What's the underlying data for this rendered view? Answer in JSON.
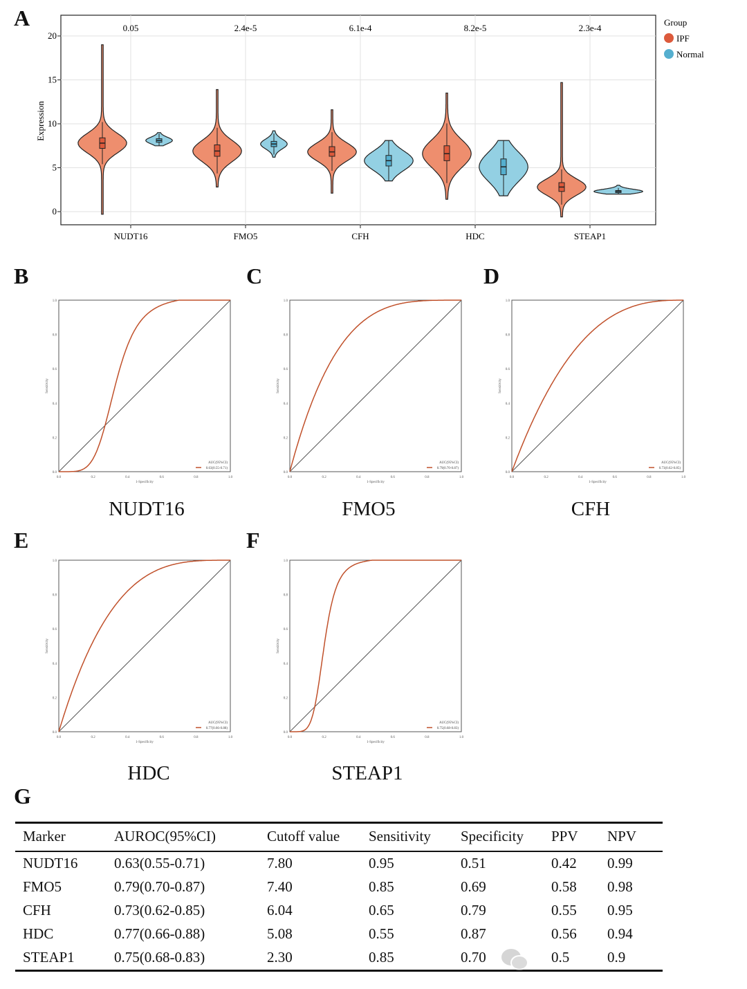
{
  "panels": {
    "A": "A",
    "B": "B",
    "C": "C",
    "D": "D",
    "E": "E",
    "F": "F",
    "G": "G"
  },
  "colors": {
    "IPF": "#EE8E6E",
    "IPF_box": "#DC5A3C",
    "Normal": "#93D0E3",
    "Normal_box": "#55AFCF",
    "roc_curve": "#C0502A"
  },
  "chart_data": [
    {
      "type": "violin",
      "ylabel": "Expression",
      "ylim": [
        -1.5,
        22
      ],
      "yticks": [
        0,
        5,
        10,
        15,
        20
      ],
      "grid": true,
      "legend": {
        "title": "Group",
        "placement": "top-right",
        "entries": [
          "IPF",
          "Normal"
        ]
      },
      "categories": [
        "NUDT16",
        "FMO5",
        "CFH",
        "HDC",
        "STEAP1"
      ],
      "pvalues": [
        "0.05",
        "2.4e-5",
        "6.1e-4",
        "8.2e-5",
        "2.3e-4"
      ],
      "series": [
        {
          "name": "IPF",
          "stats": [
            {
              "min": -0.3,
              "max": 19.0,
              "q1": 7.2,
              "median": 7.8,
              "q3": 8.4
            },
            {
              "min": 2.8,
              "max": 13.9,
              "q1": 6.3,
              "median": 6.9,
              "q3": 7.6
            },
            {
              "min": 2.1,
              "max": 11.6,
              "q1": 6.3,
              "median": 6.8,
              "q3": 7.4
            },
            {
              "min": 1.4,
              "max": 13.5,
              "q1": 5.8,
              "median": 6.6,
              "q3": 7.5
            },
            {
              "min": -0.6,
              "max": 14.7,
              "q1": 2.3,
              "median": 2.8,
              "q3": 3.3
            }
          ]
        },
        {
          "name": "Normal",
          "stats": [
            {
              "min": 7.5,
              "max": 9.0,
              "q1": 7.9,
              "median": 8.1,
              "q3": 8.3
            },
            {
              "min": 6.2,
              "max": 9.2,
              "q1": 7.4,
              "median": 7.7,
              "q3": 8.0
            },
            {
              "min": 3.5,
              "max": 8.1,
              "q1": 5.2,
              "median": 5.8,
              "q3": 6.4
            },
            {
              "min": 1.8,
              "max": 8.1,
              "q1": 4.2,
              "median": 5.1,
              "q3": 6.0
            },
            {
              "min": 2.0,
              "max": 3.0,
              "q1": 2.2,
              "median": 2.3,
              "q3": 2.4
            }
          ]
        }
      ]
    },
    {
      "type": "line",
      "title": "NUDT16",
      "panel": "B",
      "xlabel": "1-Specificity",
      "ylabel": "Sensitivity",
      "xlim": [
        0,
        1
      ],
      "ylim": [
        0,
        1
      ],
      "ticks": [
        "0.0",
        "0.2",
        "0.4",
        "0.6",
        "0.8",
        "1.0"
      ],
      "legend_title": "AUC(95%CI)",
      "auc": "0.63(0.55-0.71)",
      "shape": "sigmoid"
    },
    {
      "type": "line",
      "title": "FMO5",
      "panel": "C",
      "xlabel": "1-Specificity",
      "ylabel": "Sensitivity",
      "xlim": [
        0,
        1
      ],
      "ylim": [
        0,
        1
      ],
      "ticks": [
        "0.0",
        "0.2",
        "0.4",
        "0.6",
        "0.8",
        "1.0"
      ],
      "legend_title": "AUC(95%CI)",
      "auc": "0.79(0.70-0.87)",
      "shape": "concave"
    },
    {
      "type": "line",
      "title": "CFH",
      "panel": "D",
      "xlabel": "1-Specificity",
      "ylabel": "Sensitivity",
      "xlim": [
        0,
        1
      ],
      "ylim": [
        0,
        1
      ],
      "ticks": [
        "0.0",
        "0.2",
        "0.4",
        "0.6",
        "0.8",
        "1.0"
      ],
      "legend_title": "AUC(95%CI)",
      "auc": "0.73(0.62-0.85)",
      "shape": "concave"
    },
    {
      "type": "line",
      "title": "HDC",
      "panel": "E",
      "xlabel": "1-Specificity",
      "ylabel": "Sensitivity",
      "xlim": [
        0,
        1
      ],
      "ylim": [
        0,
        1
      ],
      "ticks": [
        "0.0",
        "0.2",
        "0.4",
        "0.6",
        "0.8",
        "1.0"
      ],
      "legend_title": "AUC(95%CI)",
      "auc": "0.77(0.66-0.88)",
      "shape": "concave"
    },
    {
      "type": "line",
      "title": "STEAP1",
      "panel": "F",
      "xlabel": "1-Specificity",
      "ylabel": "Sensitivity",
      "xlim": [
        0,
        1
      ],
      "ylim": [
        0,
        1
      ],
      "ticks": [
        "0.0",
        "0.2",
        "0.4",
        "0.6",
        "0.8",
        "1.0"
      ],
      "legend_title": "AUC(95%CI)",
      "auc": "0.75(0.68-0.83)",
      "shape": "sigmoid"
    }
  ],
  "table": {
    "headers": [
      "Marker",
      "AUROC(95%CI)",
      "Cutoff value",
      "Sensitivity",
      "Specificity",
      "PPV",
      "NPV"
    ],
    "rows": [
      [
        "NUDT16",
        "0.63(0.55-0.71)",
        "7.80",
        "0.95",
        "0.51",
        "0.42",
        "0.99"
      ],
      [
        "FMO5",
        "0.79(0.70-0.87)",
        "7.40",
        "0.85",
        "0.69",
        "0.58",
        "0.98"
      ],
      [
        "CFH",
        "0.73(0.62-0.85)",
        "6.04",
        "0.65",
        "0.79",
        "0.55",
        "0.95"
      ],
      [
        "HDC",
        "0.77(0.66-0.88)",
        "5.08",
        "0.55",
        "0.87",
        "0.56",
        "0.94"
      ],
      [
        "STEAP1",
        "0.75(0.68-0.83)",
        "2.30",
        "0.85",
        "0.70",
        "0.5",
        "0.9"
      ]
    ]
  }
}
